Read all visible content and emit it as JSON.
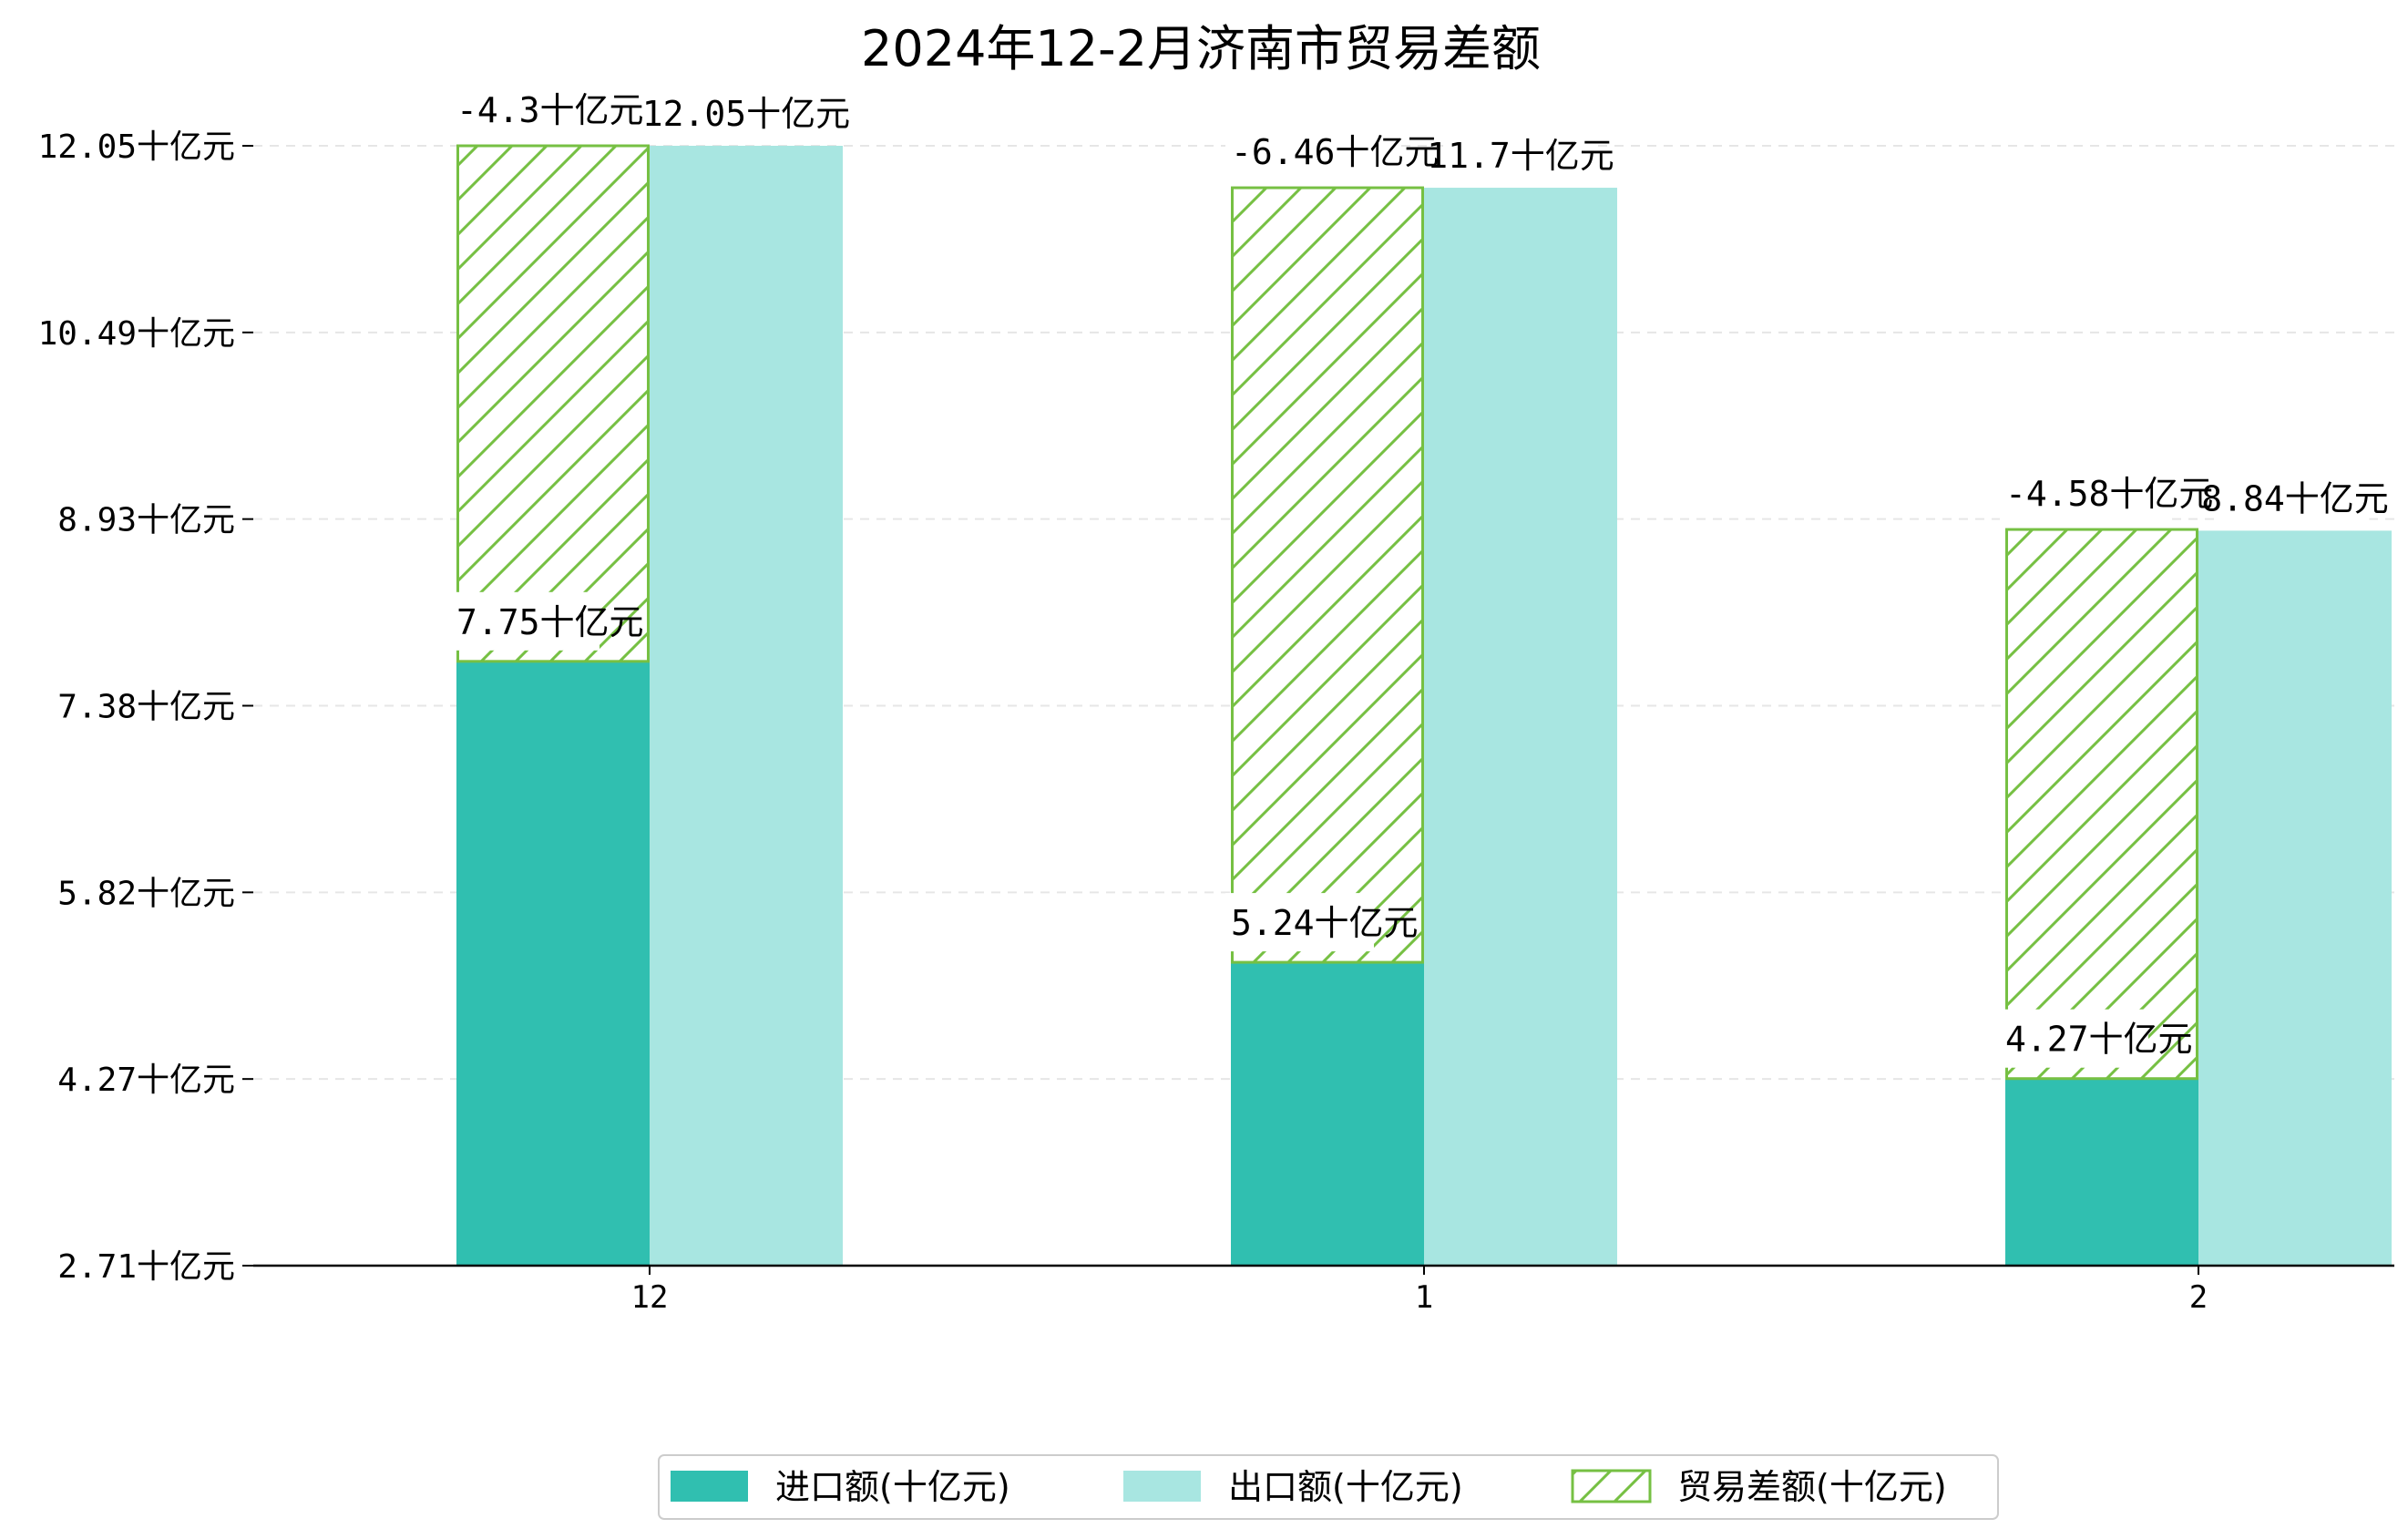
{
  "chart_data": {
    "type": "bar",
    "title": "2024年12-2月济南市贸易差额",
    "xlabel": "",
    "ylabel": "",
    "categories": [
      "12",
      "1",
      "2"
    ],
    "y_ticks": [
      "2.71十亿元",
      "4.27十亿元",
      "5.82十亿元",
      "7.38十亿元",
      "8.93十亿元",
      "10.49十亿元",
      "12.05十亿元"
    ],
    "ylim": [
      2.71,
      12.05
    ],
    "grid": true,
    "legend_position": "bottom",
    "unit": "十亿元",
    "series": [
      {
        "name": "进口额(十亿元)",
        "values": [
          7.75,
          5.24,
          4.27
        ],
        "labels": [
          "7.75十亿元",
          "5.24十亿元",
          "4.27十亿元"
        ],
        "color": "#30bfb0",
        "style": "solid"
      },
      {
        "name": "出口额(十亿元)",
        "values": [
          12.05,
          11.7,
          8.84
        ],
        "labels": [
          "12.05十亿元",
          "11.7十亿元",
          "8.84十亿元"
        ],
        "color": "#a8e6e1",
        "style": "solid"
      },
      {
        "name": "贸易差额(十亿元)",
        "values": [
          -4.3,
          -6.46,
          -4.58
        ],
        "labels": [
          "-4.3十亿元",
          "-6.46十亿元",
          "-4.58十亿元"
        ],
        "color": "#76c043",
        "style": "hatched"
      }
    ]
  }
}
